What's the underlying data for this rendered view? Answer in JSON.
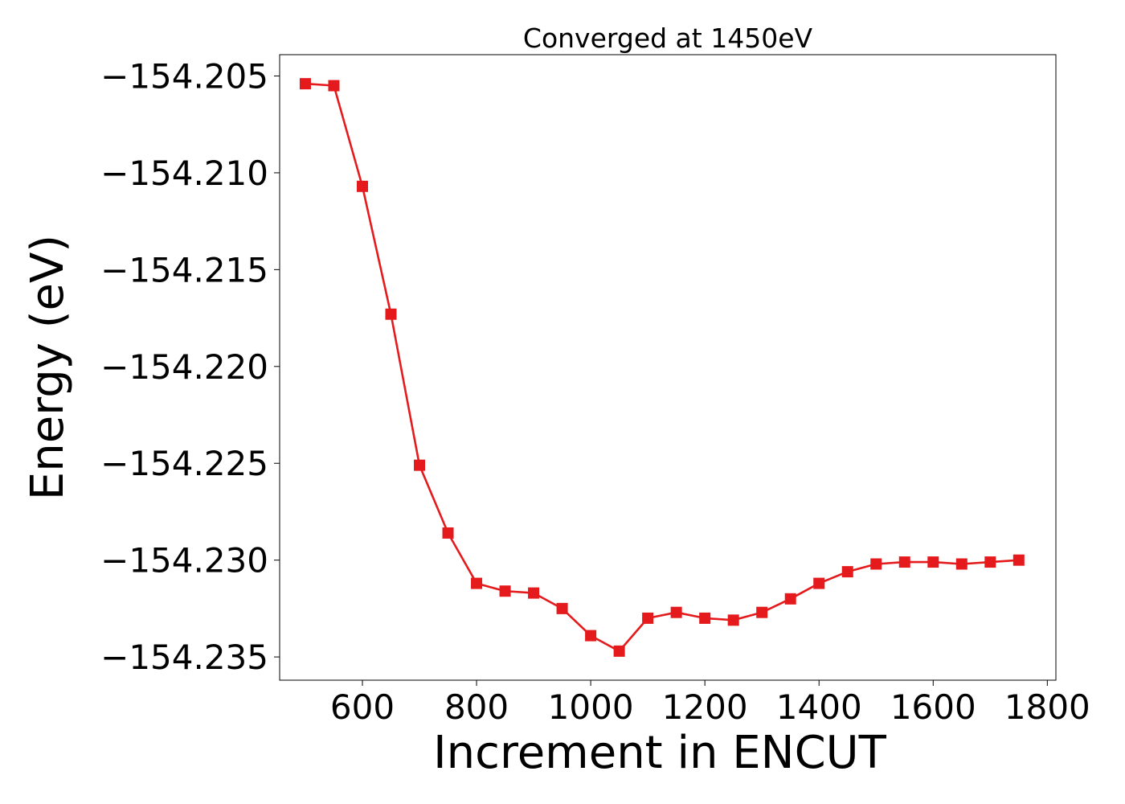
{
  "chart_data": {
    "type": "line",
    "title": "Converged at 1450eV",
    "xlabel": "Increment in ENCUT",
    "ylabel": "Energy (eV)",
    "xlim": [
      455,
      1815
    ],
    "ylim": [
      -154.2362,
      -154.2039
    ],
    "xticks": [
      {
        "value": 600,
        "label": "600"
      },
      {
        "value": 800,
        "label": "800"
      },
      {
        "value": 1000,
        "label": "1000"
      },
      {
        "value": 1200,
        "label": "1200"
      },
      {
        "value": 1400,
        "label": "1400"
      },
      {
        "value": 1600,
        "label": "1600"
      },
      {
        "value": 1800,
        "label": "1800"
      }
    ],
    "yticks": [
      {
        "value": -154.205,
        "label": "−154.205"
      },
      {
        "value": -154.21,
        "label": "−154.210"
      },
      {
        "value": -154.215,
        "label": "−154.215"
      },
      {
        "value": -154.22,
        "label": "−154.220"
      },
      {
        "value": -154.225,
        "label": "−154.225"
      },
      {
        "value": -154.23,
        "label": "−154.230"
      },
      {
        "value": -154.235,
        "label": "−154.235"
      }
    ],
    "grid": false,
    "legend": "none",
    "color": "#e41a1c",
    "marker": "square",
    "series": [
      {
        "x": [
          500,
          550,
          600,
          650,
          700,
          750,
          800,
          850,
          900,
          950,
          1000,
          1050,
          1100,
          1150,
          1200,
          1250,
          1300,
          1350,
          1400,
          1450,
          1500,
          1550,
          1600,
          1650,
          1700,
          1750
        ],
        "y": [
          -154.2054,
          -154.2055,
          -154.2107,
          -154.2173,
          -154.2251,
          -154.2286,
          -154.2312,
          -154.2316,
          -154.2317,
          -154.2325,
          -154.2339,
          -154.2347,
          -154.233,
          -154.2327,
          -154.233,
          -154.2331,
          -154.2327,
          -154.232,
          -154.2312,
          -154.2306,
          -154.2302,
          -154.2301,
          -154.2301,
          -154.2302,
          -154.2301,
          -154.23
        ]
      }
    ]
  }
}
